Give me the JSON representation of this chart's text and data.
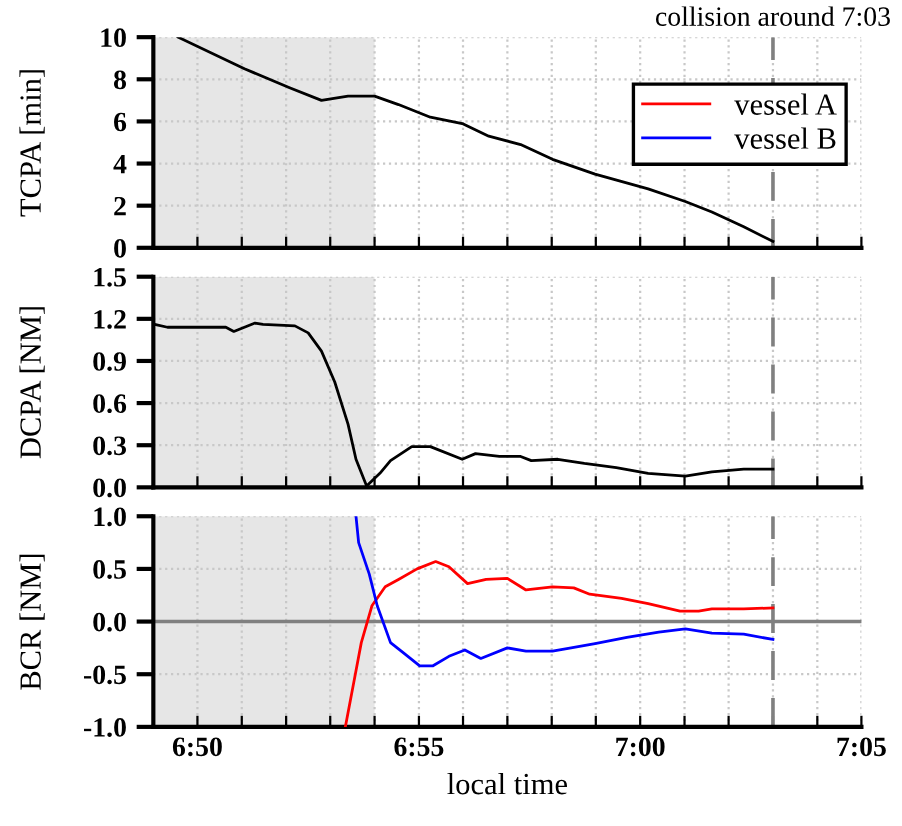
{
  "chart_data": [
    {
      "type": "line",
      "ylabel": "TCPA [min]",
      "tick_labels": "y",
      "grid": true,
      "xlim": [
        6.8167,
        7.0833
      ],
      "xticks": [
        {
          "value": 6.8167,
          "label": null
        },
        {
          "value": 6.8333,
          "label": null
        },
        {
          "value": 6.85,
          "label": null
        },
        {
          "value": 6.8667,
          "label": null
        },
        {
          "value": 6.8833,
          "label": null
        },
        {
          "value": 6.9,
          "label": null
        },
        {
          "value": 6.9167,
          "label": null
        },
        {
          "value": 6.9333,
          "label": null
        },
        {
          "value": 6.95,
          "label": null
        },
        {
          "value": 6.9667,
          "label": null
        },
        {
          "value": 6.9833,
          "label": null
        },
        {
          "value": 7.0,
          "label": null
        },
        {
          "value": 7.0167,
          "label": null
        },
        {
          "value": 7.0333,
          "label": null
        },
        {
          "value": 7.05,
          "label": null
        },
        {
          "value": 7.0667,
          "label": null
        },
        {
          "value": 7.0833,
          "label": null
        }
      ],
      "ylim": [
        0,
        10
      ],
      "yticks": [
        0,
        2,
        4,
        6,
        8,
        10
      ],
      "bands": [
        {
          "axis": "x",
          "from": 6.8167,
          "to": 6.9,
          "color": "#e6e6e6"
        }
      ],
      "ref_lines": [
        {
          "axis": "x",
          "value": 7.05,
          "label": "collision around 7:03",
          "color": "#808080",
          "line_style": "dashed"
        }
      ],
      "series": [
        {
          "color": "#000000",
          "x": [
            6.826,
            6.851,
            6.868,
            6.88,
            6.89,
            6.9,
            6.909,
            6.921,
            6.933,
            6.943,
            6.955,
            6.967,
            6.983,
            7.003,
            7.017,
            7.027,
            7.039,
            7.05
          ],
          "values": [
            10,
            8.5,
            7.6,
            7.0,
            7.2,
            7.2,
            6.8,
            6.2,
            5.9,
            5.3,
            4.9,
            4.2,
            3.5,
            2.8,
            2.2,
            1.7,
            1.0,
            0.3
          ]
        }
      ]
    },
    {
      "type": "line",
      "ylabel": "DCPA [NM]",
      "tick_labels": "y",
      "grid": true,
      "xlim": [
        6.8167,
        7.0833
      ],
      "xticks": [
        {
          "value": 6.8167,
          "label": null
        },
        {
          "value": 6.8333,
          "label": null
        },
        {
          "value": 6.85,
          "label": null
        },
        {
          "value": 6.8667,
          "label": null
        },
        {
          "value": 6.8833,
          "label": null
        },
        {
          "value": 6.9,
          "label": null
        },
        {
          "value": 6.9167,
          "label": null
        },
        {
          "value": 6.9333,
          "label": null
        },
        {
          "value": 6.95,
          "label": null
        },
        {
          "value": 6.9667,
          "label": null
        },
        {
          "value": 6.9833,
          "label": null
        },
        {
          "value": 7.0,
          "label": null
        },
        {
          "value": 7.0167,
          "label": null
        },
        {
          "value": 7.0333,
          "label": null
        },
        {
          "value": 7.05,
          "label": null
        },
        {
          "value": 7.0667,
          "label": null
        },
        {
          "value": 7.0833,
          "label": null
        }
      ],
      "ylim": [
        0,
        1.5
      ],
      "yticks": [
        {
          "value": 0,
          "label": "0.0"
        },
        0.3,
        0.6,
        0.9,
        1.2,
        1.5
      ],
      "bands": [
        {
          "axis": "x",
          "from": 6.8167,
          "to": 6.9,
          "color": "#e6e6e6"
        }
      ],
      "ref_lines": [
        {
          "axis": "x",
          "value": 7.05,
          "color": "#808080",
          "line_style": "dashed"
        }
      ],
      "series": [
        {
          "color": "#000000",
          "x": [
            6.8172,
            6.822,
            6.844,
            6.847,
            6.855,
            6.858,
            6.87,
            6.875,
            6.88,
            6.885,
            6.89,
            6.893,
            6.897,
            6.902,
            6.906,
            6.914,
            6.921,
            6.933,
            6.938,
            6.947,
            6.955,
            6.959,
            6.969,
            6.979,
            6.991,
            7.003,
            7.017,
            7.027,
            7.039,
            7.05
          ],
          "values": [
            1.16,
            1.14,
            1.14,
            1.11,
            1.17,
            1.16,
            1.15,
            1.1,
            0.97,
            0.75,
            0.45,
            0.2,
            0.01,
            0.1,
            0.19,
            0.29,
            0.29,
            0.2,
            0.24,
            0.22,
            0.22,
            0.19,
            0.2,
            0.17,
            0.14,
            0.1,
            0.08,
            0.11,
            0.13,
            0.13
          ]
        }
      ]
    },
    {
      "type": "line",
      "ylabel": "BCR [NM]",
      "xlabel": "local time",
      "grid": true,
      "legend": "top right",
      "xlim": [
        6.8167,
        7.0833
      ],
      "xticks": [
        {
          "value": 6.8167,
          "label": null
        },
        {
          "value": 6.8333,
          "label": "6:50"
        },
        {
          "value": 6.85,
          "label": null
        },
        {
          "value": 6.8667,
          "label": null
        },
        {
          "value": 6.8833,
          "label": null
        },
        {
          "value": 6.9,
          "label": null
        },
        {
          "value": 6.9167,
          "label": "6:55"
        },
        {
          "value": 6.9333,
          "label": null
        },
        {
          "value": 6.95,
          "label": null
        },
        {
          "value": 6.9667,
          "label": null
        },
        {
          "value": 6.9833,
          "label": null
        },
        {
          "value": 7.0,
          "label": "7:00"
        },
        {
          "value": 7.0167,
          "label": null
        },
        {
          "value": 7.0333,
          "label": null
        },
        {
          "value": 7.05,
          "label": null
        },
        {
          "value": 7.0667,
          "label": null
        },
        {
          "value": 7.0833,
          "label": "7:05"
        }
      ],
      "ylim": [
        -1,
        1
      ],
      "yticks": [
        {
          "value": -1,
          "label": "-1.0"
        },
        {
          "value": -0.5,
          "label": "-0.5"
        },
        {
          "value": 0,
          "label": "0.0"
        },
        0.5,
        {
          "value": 1,
          "label": "1.0"
        }
      ],
      "bands": [
        {
          "axis": "x",
          "from": 6.8167,
          "to": 6.9,
          "color": "#e6e6e6"
        }
      ],
      "ref_lines": [
        {
          "axis": "x",
          "value": 7.05,
          "color": "#808080",
          "line_style": "dashed"
        },
        {
          "axis": "y",
          "value": 0,
          "color": "#808080",
          "line_style": "solid"
        }
      ],
      "series": [
        {
          "name": "vessel A",
          "color": "#ff0000",
          "x": [
            6.889,
            6.892,
            6.895,
            6.899,
            6.904,
            6.909,
            6.916,
            6.923,
            6.928,
            6.935,
            6.942,
            6.95,
            6.957,
            6.967,
            6.975,
            6.981,
            6.993,
            7.003,
            7.015,
            7.022,
            7.027,
            7.039,
            7.05
          ],
          "values": [
            -1.0,
            -0.6,
            -0.2,
            0.15,
            0.33,
            0.4,
            0.5,
            0.57,
            0.52,
            0.36,
            0.4,
            0.41,
            0.3,
            0.33,
            0.32,
            0.26,
            0.22,
            0.17,
            0.1,
            0.1,
            0.12,
            0.12,
            0.13
          ]
        },
        {
          "name": "vessel B",
          "color": "#0000ff",
          "x": [
            6.893,
            6.894,
            6.898,
            6.901,
            6.906,
            6.911,
            6.917,
            6.922,
            6.928,
            6.934,
            6.94,
            6.95,
            6.957,
            6.967,
            6.974,
            6.983,
            6.995,
            7.007,
            7.017,
            7.027,
            7.039,
            7.05
          ],
          "values": [
            1.0,
            0.75,
            0.45,
            0.15,
            -0.2,
            -0.3,
            -0.42,
            -0.42,
            -0.33,
            -0.27,
            -0.35,
            -0.25,
            -0.28,
            -0.28,
            -0.25,
            -0.21,
            -0.15,
            -0.1,
            -0.07,
            -0.11,
            -0.12,
            -0.17
          ]
        }
      ]
    }
  ]
}
